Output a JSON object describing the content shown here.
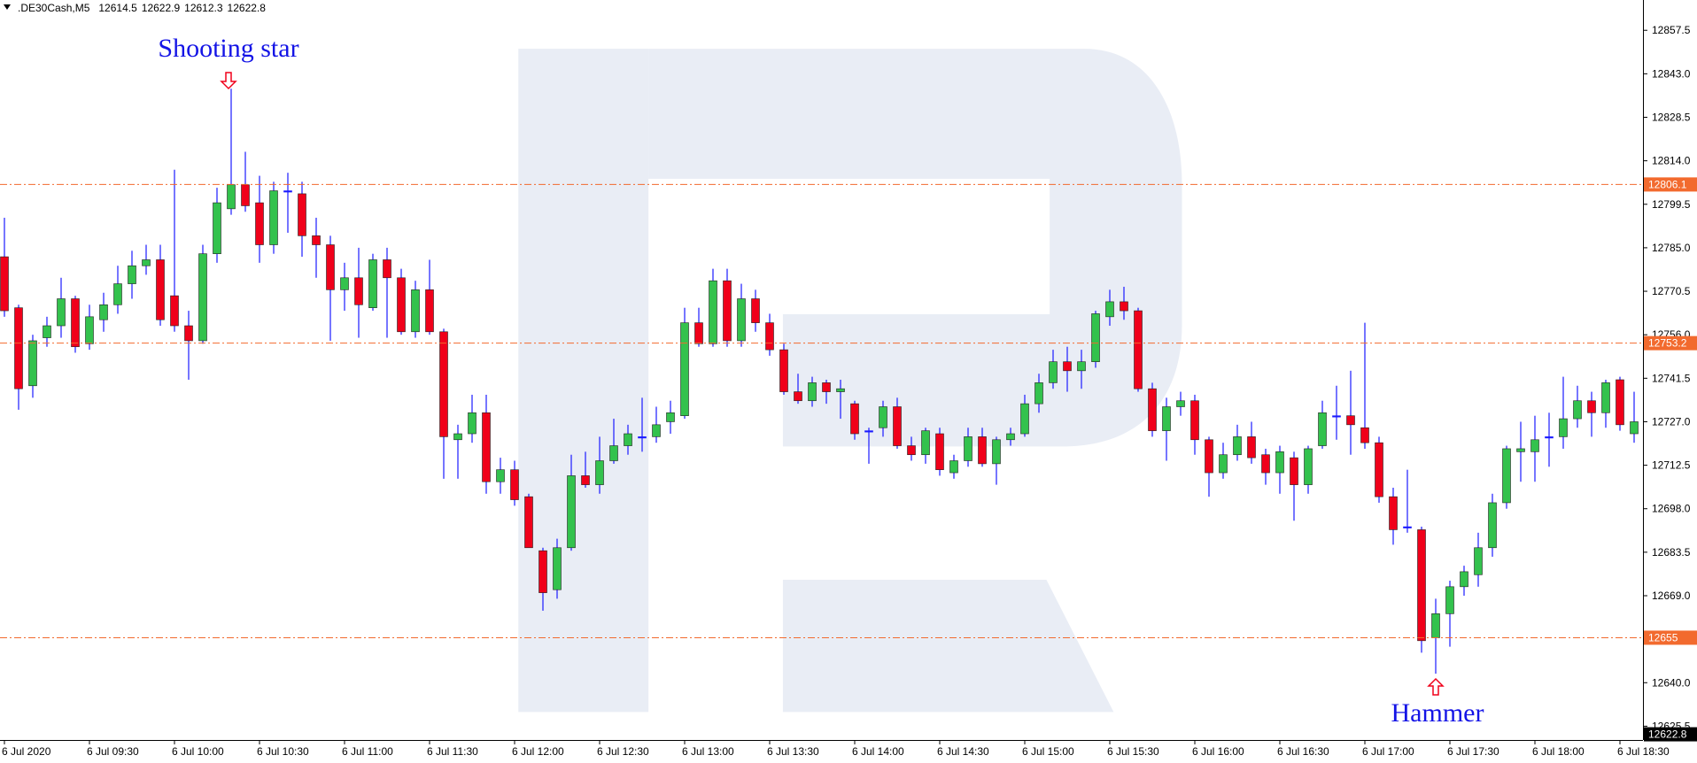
{
  "chart_data": {
    "type": "candlestick",
    "symbol": ".DE30Cash,M5",
    "header_values": [
      12614.5,
      12622.9,
      12612.3,
      12622.8
    ],
    "annotations": [
      "Shooting star",
      "Hammer"
    ],
    "categories": [
      "6 Jul 2020",
      null,
      null,
      null,
      null,
      null,
      "6 Jul 09:30",
      null,
      null,
      null,
      null,
      null,
      "6 Jul 10:00",
      null,
      null,
      null,
      null,
      null,
      "6 Jul 10:30",
      null,
      null,
      null,
      null,
      null,
      "6 Jul 11:00",
      null,
      null,
      null,
      null,
      null,
      "6 Jul 11:30",
      null,
      null,
      null,
      null,
      null,
      "6 Jul 12:00",
      null,
      null,
      null,
      null,
      null,
      "6 Jul 12:30",
      null,
      null,
      null,
      null,
      null,
      "6 Jul 13:00",
      null,
      null,
      null,
      null,
      null,
      "6 Jul 13:30",
      null,
      null,
      null,
      null,
      null,
      "6 Jul 14:00",
      null,
      null,
      null,
      null,
      null,
      "6 Jul 14:30",
      null,
      null,
      null,
      null,
      null,
      "6 Jul 15:00",
      null,
      null,
      null,
      null,
      null,
      "6 Jul 15:30",
      null,
      null,
      null,
      null,
      null,
      "6 Jul 16:00",
      null,
      null,
      null,
      null,
      null,
      "6 Jul 16:30",
      null,
      null,
      null,
      null,
      null,
      "6 Jul 17:00",
      null,
      null,
      null,
      null,
      null,
      "6 Jul 17:30",
      null,
      null,
      null,
      null,
      null,
      "6 Jul 18:00",
      null,
      null,
      null,
      null,
      null,
      "6 Jul 18:30",
      null
    ],
    "open": [
      12782,
      12765,
      12739,
      12755,
      12759,
      12768,
      12753,
      12761,
      12766,
      12773,
      12779,
      12781,
      12769,
      12759,
      12754,
      12783,
      12798,
      12806,
      12800,
      12786,
      12804,
      12803,
      12789,
      12786,
      12771,
      12775,
      12765,
      12781,
      12775,
      12757,
      12771,
      12757,
      12721,
      12723,
      12730,
      12707,
      12711,
      12702,
      12684,
      12671,
      12685,
      12709,
      12706,
      12714,
      12719,
      12722,
      12722,
      12727,
      12729,
      12760,
      12753,
      12774,
      12754,
      12768,
      12760,
      12751,
      12737,
      12734,
      12740,
      12737,
      12733,
      12724,
      12725,
      12732,
      12719,
      12716,
      12723,
      12710,
      12714,
      12722,
      12713,
      12721,
      12723,
      12733,
      12740,
      12747,
      12744,
      12747,
      12762,
      12767,
      12764,
      12738,
      12724,
      12732,
      12734,
      12721,
      12710,
      12716,
      12722,
      12716,
      12710,
      12715,
      12706,
      12719,
      12729,
      12729,
      12725,
      12720,
      12702,
      12692,
      12691,
      12655,
      12663,
      12672,
      12676,
      12685,
      12700,
      12717,
      12717,
      12722,
      12722,
      12728,
      12734,
      12730,
      12741,
      12723
    ],
    "high": [
      12795,
      12766,
      12756,
      12762,
      12775,
      12769,
      12766,
      12770,
      12779,
      12784,
      12786,
      12786,
      12811,
      12764,
      12786,
      12805,
      12838,
      12817,
      12809,
      12807,
      12810,
      12807,
      12795,
      12789,
      12780,
      12785,
      12783,
      12785,
      12778,
      12774,
      12781,
      12758,
      12726,
      12736,
      12736,
      12715,
      12714,
      12703,
      12685,
      12688,
      12716,
      12717,
      12722,
      12728,
      12726,
      12735,
      12732,
      12734,
      12765,
      12765,
      12778,
      12778,
      12773,
      12771,
      12763,
      12753,
      12743,
      12742,
      12741,
      12741,
      12734,
      12725,
      12734,
      12735,
      12722,
      12725,
      12725,
      12716,
      12725,
      12725,
      12722,
      12725,
      12736,
      12743,
      12751,
      12752,
      12751,
      12764,
      12771,
      12772,
      12765,
      12740,
      12735,
      12737,
      12736,
      12722,
      12720,
      12726,
      12727,
      12718,
      12719,
      12717,
      12719,
      12734,
      12739,
      12744,
      12760,
      12722,
      12705,
      12711,
      12692,
      12668,
      12674,
      12679,
      12690,
      12703,
      12719,
      12727,
      12729,
      12730,
      12742,
      12739,
      12737,
      12741,
      12742,
      12737
    ],
    "low": [
      12762,
      12731,
      12735,
      12752,
      12755,
      12750,
      12751,
      12757,
      12763,
      12768,
      12776,
      12759,
      12757,
      12741,
      12753,
      12780,
      12796,
      12797,
      12780,
      12783,
      12790,
      12782,
      12775,
      12754,
      12764,
      12755,
      12764,
      12755,
      12756,
      12755,
      12756,
      12708,
      12708,
      12720,
      12703,
      12703,
      12699,
      12685,
      12664,
      12668,
      12684,
      12705,
      12703,
      12713,
      12716,
      12717,
      12720,
      12723,
      12728,
      12752,
      12752,
      12752,
      12752,
      12757,
      12749,
      12736,
      12733,
      12732,
      12733,
      12728,
      12721,
      12713,
      12722,
      12718,
      12714,
      12713,
      12709,
      12708,
      12712,
      12712,
      12706,
      12719,
      12722,
      12730,
      12738,
      12737,
      12738,
      12745,
      12759,
      12761,
      12737,
      12722,
      12714,
      12729,
      12716,
      12702,
      12708,
      12714,
      12713,
      12706,
      12703,
      12694,
      12703,
      12718,
      12721,
      12716,
      12718,
      12700,
      12686,
      12690,
      12650,
      12643,
      12652,
      12669,
      12672,
      12682,
      12698,
      12707,
      12707,
      12712,
      12718,
      12725,
      12722,
      12725,
      12724,
      12720
    ],
    "close": [
      12764,
      12738,
      12754,
      12759,
      12768,
      12752,
      12762,
      12766,
      12773,
      12779,
      12781,
      12761,
      12759,
      12754,
      12783,
      12800,
      12806,
      12799,
      12786,
      12804,
      12804,
      12789,
      12786,
      12771,
      12775,
      12766,
      12781,
      12775,
      12757,
      12771,
      12757,
      12722,
      12723,
      12730,
      12707,
      12711,
      12701,
      12685,
      12670,
      12685,
      12709,
      12706,
      12714,
      12719,
      12723,
      12722,
      12726,
      12730,
      12760,
      12753,
      12774,
      12754,
      12768,
      12760,
      12751,
      12737,
      12734,
      12740,
      12737,
      12738,
      12723,
      12724,
      12732,
      12719,
      12716,
      12724,
      12711,
      12714,
      12722,
      12713,
      12721,
      12723,
      12733,
      12740,
      12747,
      12744,
      12747,
      12763,
      12767,
      12764,
      12738,
      12724,
      12732,
      12734,
      12721,
      12710,
      12716,
      12722,
      12715,
      12710,
      12717,
      12706,
      12718,
      12730,
      12729,
      12726,
      12720,
      12702,
      12691,
      12692,
      12654,
      12663,
      12672,
      12677,
      12685,
      12700,
      12718,
      12718,
      12721,
      12722,
      12728,
      12734,
      12730,
      12740,
      12726,
      12727
    ],
    "up_color": "#33c24d",
    "down_color": "#f0001a",
    "wick_color": "#1a1aff",
    "ylim": [
      12620.9,
      12867.6
    ],
    "yticks": [
      12857.5,
      {
        "value": 12843.0,
        "label": "12843.0"
      },
      12828.5,
      {
        "value": 12814.0,
        "label": "12814.0"
      },
      12799.5,
      {
        "value": 12785.0,
        "label": "12785.0"
      },
      12770.5,
      {
        "value": 12756.0,
        "label": "12756.0"
      },
      12741.5,
      {
        "value": 12727.0,
        "label": "12727.0"
      },
      12712.5,
      {
        "value": 12698.0,
        "label": "12698.0"
      },
      12683.5,
      {
        "value": 12669.0,
        "label": "12669.0"
      },
      {
        "value": 12640.0,
        "label": "12640.0"
      },
      12625.5
    ],
    "levels": [
      12806.1,
      12753.2,
      12655.0
    ],
    "level_color": "#f26a2e",
    "current_price": 12622.8
  }
}
